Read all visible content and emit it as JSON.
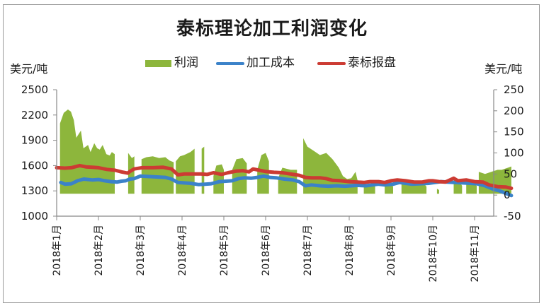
{
  "chart_data": {
    "type": "area+line",
    "title": "泰标理论加工利润变化",
    "ylabel_left": "美元/吨",
    "ylabel_right": "美元/吨",
    "ylim_left": [
      1000,
      2500
    ],
    "yticks_left": [
      2500,
      2200,
      1900,
      1600,
      1300,
      1000
    ],
    "ylim_right": [
      -50,
      250
    ],
    "yticks_right": [
      250,
      200,
      150,
      100,
      50,
      0,
      -50
    ],
    "x_ticks": [
      "2018年1月",
      "2018年2月",
      "2018年3月",
      "2018年4月",
      "2018年5月",
      "2018年6月",
      "2018年7月",
      "2018年8月",
      "2018年9月",
      "2018年10月",
      "2018年11月"
    ],
    "x_unit": "month index (0 = 2018年1月)",
    "legend_position": "top",
    "grid": false,
    "legend": [
      {
        "name": "利润",
        "type": "area",
        "color": "#8db63c",
        "axis": "right"
      },
      {
        "name": "加工成本",
        "type": "line",
        "color": "#3b82c9",
        "axis": "left"
      },
      {
        "name": "泰标报盘",
        "type": "line",
        "color": "#cc3b33",
        "axis": "left"
      }
    ],
    "series": [
      {
        "name": "利润",
        "axis": "right",
        "segments": [
          [
            [
              0.08,
              170
            ],
            [
              0.17,
              195
            ],
            [
              0.27,
              203
            ],
            [
              0.34,
              198
            ],
            [
              0.41,
              178
            ],
            [
              0.47,
              136
            ],
            [
              0.58,
              153
            ],
            [
              0.64,
              111
            ],
            [
              0.75,
              119
            ],
            [
              0.81,
              102
            ],
            [
              0.9,
              123
            ],
            [
              0.97,
              111
            ],
            [
              1.03,
              108
            ],
            [
              1.1,
              119
            ],
            [
              1.19,
              97
            ],
            [
              1.27,
              94
            ],
            [
              1.32,
              102
            ],
            [
              1.39,
              97
            ]
          ],
          [
            [
              1.71,
              100
            ],
            [
              1.8,
              88
            ],
            [
              1.86,
              92
            ]
          ],
          [
            [
              2.03,
              85
            ],
            [
              2.15,
              90
            ],
            [
              2.3,
              92
            ],
            [
              2.45,
              88
            ],
            [
              2.6,
              90
            ],
            [
              2.7,
              82
            ],
            [
              2.8,
              78
            ]
          ],
          [
            [
              2.85,
              80
            ],
            [
              2.95,
              92
            ],
            [
              3.05,
              95
            ],
            [
              3.2,
              102
            ],
            [
              3.3,
              110
            ]
          ],
          [
            [
              3.47,
              110
            ],
            [
              3.53,
              115
            ]
          ],
          [
            [
              3.75,
              45
            ],
            [
              3.82,
              70
            ],
            [
              3.95,
              73
            ],
            [
              4.0,
              60
            ]
          ],
          [
            [
              4.2,
              60
            ],
            [
              4.3,
              85
            ],
            [
              4.45,
              88
            ],
            [
              4.55,
              75
            ]
          ],
          [
            [
              4.8,
              60
            ],
            [
              4.9,
              95
            ],
            [
              5.0,
              100
            ],
            [
              5.08,
              80
            ]
          ],
          [
            [
              5.3,
              40
            ],
            [
              5.4,
              65
            ],
            [
              5.6,
              60
            ],
            [
              5.75,
              60
            ]
          ],
          [
            [
              5.9,
              135
            ],
            [
              6.0,
              115
            ],
            [
              6.15,
              105
            ],
            [
              6.3,
              95
            ],
            [
              6.45,
              100
            ],
            [
              6.6,
              85
            ],
            [
              6.75,
              65
            ],
            [
              6.85,
              45
            ],
            [
              6.95,
              38
            ],
            [
              7.05,
              40
            ],
            [
              7.15,
              55
            ],
            [
              7.2,
              35
            ]
          ],
          [
            [
              7.35,
              20
            ],
            [
              7.5,
              25
            ],
            [
              7.62,
              30
            ]
          ],
          [
            [
              7.85,
              25
            ],
            [
              8.0,
              28
            ],
            [
              8.05,
              20
            ]
          ],
          [
            [
              8.25,
              35
            ],
            [
              8.4,
              30
            ],
            [
              8.6,
              30
            ],
            [
              8.75,
              32
            ],
            [
              8.85,
              20
            ]
          ],
          [
            [
              9.1,
              15
            ],
            [
              9.15,
              12
            ]
          ],
          [
            [
              9.5,
              40
            ],
            [
              9.6,
              38
            ],
            [
              9.7,
              22
            ]
          ],
          [
            [
              9.8,
              28
            ],
            [
              9.9,
              25
            ],
            [
              10.0,
              25
            ],
            [
              10.05,
              22
            ]
          ],
          [
            [
              10.1,
              55
            ],
            [
              10.25,
              50
            ],
            [
              10.4,
              55
            ],
            [
              10.55,
              60
            ],
            [
              10.65,
              60
            ],
            [
              10.8,
              65
            ],
            [
              10.88,
              68
            ]
          ]
        ]
      },
      {
        "name": "加工成本",
        "axis": "left",
        "points": [
          [
            0.1,
            1400
          ],
          [
            0.2,
            1380
          ],
          [
            0.35,
            1385
          ],
          [
            0.5,
            1420
          ],
          [
            0.65,
            1440
          ],
          [
            0.85,
            1430
          ],
          [
            1.0,
            1435
          ],
          [
            1.15,
            1420
          ],
          [
            1.3,
            1410
          ],
          [
            1.45,
            1405
          ],
          [
            1.55,
            1415
          ],
          [
            1.65,
            1420
          ],
          [
            1.75,
            1440
          ],
          [
            1.85,
            1445
          ],
          [
            2.0,
            1475
          ],
          [
            2.2,
            1470
          ],
          [
            2.4,
            1465
          ],
          [
            2.6,
            1460
          ],
          [
            2.75,
            1440
          ],
          [
            2.9,
            1400
          ],
          [
            3.05,
            1395
          ],
          [
            3.2,
            1390
          ],
          [
            3.4,
            1375
          ],
          [
            3.55,
            1380
          ],
          [
            3.7,
            1385
          ],
          [
            3.9,
            1410
          ],
          [
            4.05,
            1415
          ],
          [
            4.2,
            1420
          ],
          [
            4.35,
            1445
          ],
          [
            4.5,
            1455
          ],
          [
            4.65,
            1450
          ],
          [
            4.8,
            1460
          ],
          [
            4.95,
            1475
          ],
          [
            5.1,
            1460
          ],
          [
            5.25,
            1455
          ],
          [
            5.45,
            1440
          ],
          [
            5.65,
            1430
          ],
          [
            5.8,
            1410
          ],
          [
            5.95,
            1360
          ],
          [
            6.1,
            1370
          ],
          [
            6.3,
            1360
          ],
          [
            6.5,
            1355
          ],
          [
            6.7,
            1360
          ],
          [
            6.9,
            1355
          ],
          [
            7.05,
            1360
          ],
          [
            7.2,
            1365
          ],
          [
            7.4,
            1360
          ],
          [
            7.55,
            1370
          ],
          [
            7.7,
            1380
          ],
          [
            7.85,
            1370
          ],
          [
            8.05,
            1380
          ],
          [
            8.2,
            1400
          ],
          [
            8.35,
            1390
          ],
          [
            8.5,
            1380
          ],
          [
            8.7,
            1385
          ],
          [
            8.9,
            1390
          ],
          [
            9.05,
            1400
          ],
          [
            9.2,
            1410
          ],
          [
            9.35,
            1405
          ],
          [
            9.5,
            1400
          ],
          [
            9.7,
            1395
          ],
          [
            9.9,
            1390
          ],
          [
            10.05,
            1385
          ],
          [
            10.25,
            1360
          ],
          [
            10.45,
            1320
          ],
          [
            10.6,
            1300
          ],
          [
            10.75,
            1270
          ],
          [
            10.88,
            1245
          ]
        ]
      },
      {
        "name": "泰标报盘",
        "axis": "left",
        "points": [
          [
            0.0,
            1575
          ],
          [
            0.2,
            1570
          ],
          [
            0.35,
            1575
          ],
          [
            0.55,
            1600
          ],
          [
            0.7,
            1585
          ],
          [
            0.85,
            1580
          ],
          [
            1.0,
            1575
          ],
          [
            1.2,
            1555
          ],
          [
            1.4,
            1545
          ],
          [
            1.55,
            1525
          ],
          [
            1.7,
            1510
          ],
          [
            1.75,
            1530
          ],
          [
            1.85,
            1560
          ],
          [
            2.05,
            1575
          ],
          [
            2.3,
            1575
          ],
          [
            2.55,
            1580
          ],
          [
            2.75,
            1560
          ],
          [
            2.9,
            1490
          ],
          [
            3.05,
            1500
          ],
          [
            3.25,
            1500
          ],
          [
            3.45,
            1500
          ],
          [
            3.6,
            1495
          ],
          [
            3.75,
            1515
          ],
          [
            3.95,
            1495
          ],
          [
            4.1,
            1515
          ],
          [
            4.3,
            1535
          ],
          [
            4.45,
            1540
          ],
          [
            4.6,
            1525
          ],
          [
            4.7,
            1560
          ],
          [
            4.85,
            1545
          ],
          [
            5.0,
            1530
          ],
          [
            5.2,
            1520
          ],
          [
            5.4,
            1515
          ],
          [
            5.6,
            1500
          ],
          [
            5.8,
            1485
          ],
          [
            5.95,
            1460
          ],
          [
            6.1,
            1455
          ],
          [
            6.3,
            1455
          ],
          [
            6.45,
            1445
          ],
          [
            6.6,
            1425
          ],
          [
            6.8,
            1420
          ],
          [
            7.0,
            1410
          ],
          [
            7.2,
            1405
          ],
          [
            7.35,
            1400
          ],
          [
            7.5,
            1410
          ],
          [
            7.7,
            1410
          ],
          [
            7.85,
            1400
          ],
          [
            8.0,
            1420
          ],
          [
            8.15,
            1430
          ],
          [
            8.35,
            1420
          ],
          [
            8.55,
            1405
          ],
          [
            8.75,
            1405
          ],
          [
            8.9,
            1420
          ],
          [
            9.0,
            1420
          ],
          [
            9.15,
            1410
          ],
          [
            9.3,
            1405
          ],
          [
            9.5,
            1450
          ],
          [
            9.6,
            1420
          ],
          [
            9.8,
            1430
          ],
          [
            10.0,
            1410
          ],
          [
            10.2,
            1405
          ],
          [
            10.35,
            1370
          ],
          [
            10.55,
            1350
          ],
          [
            10.75,
            1345
          ],
          [
            10.88,
            1330
          ]
        ]
      }
    ]
  }
}
